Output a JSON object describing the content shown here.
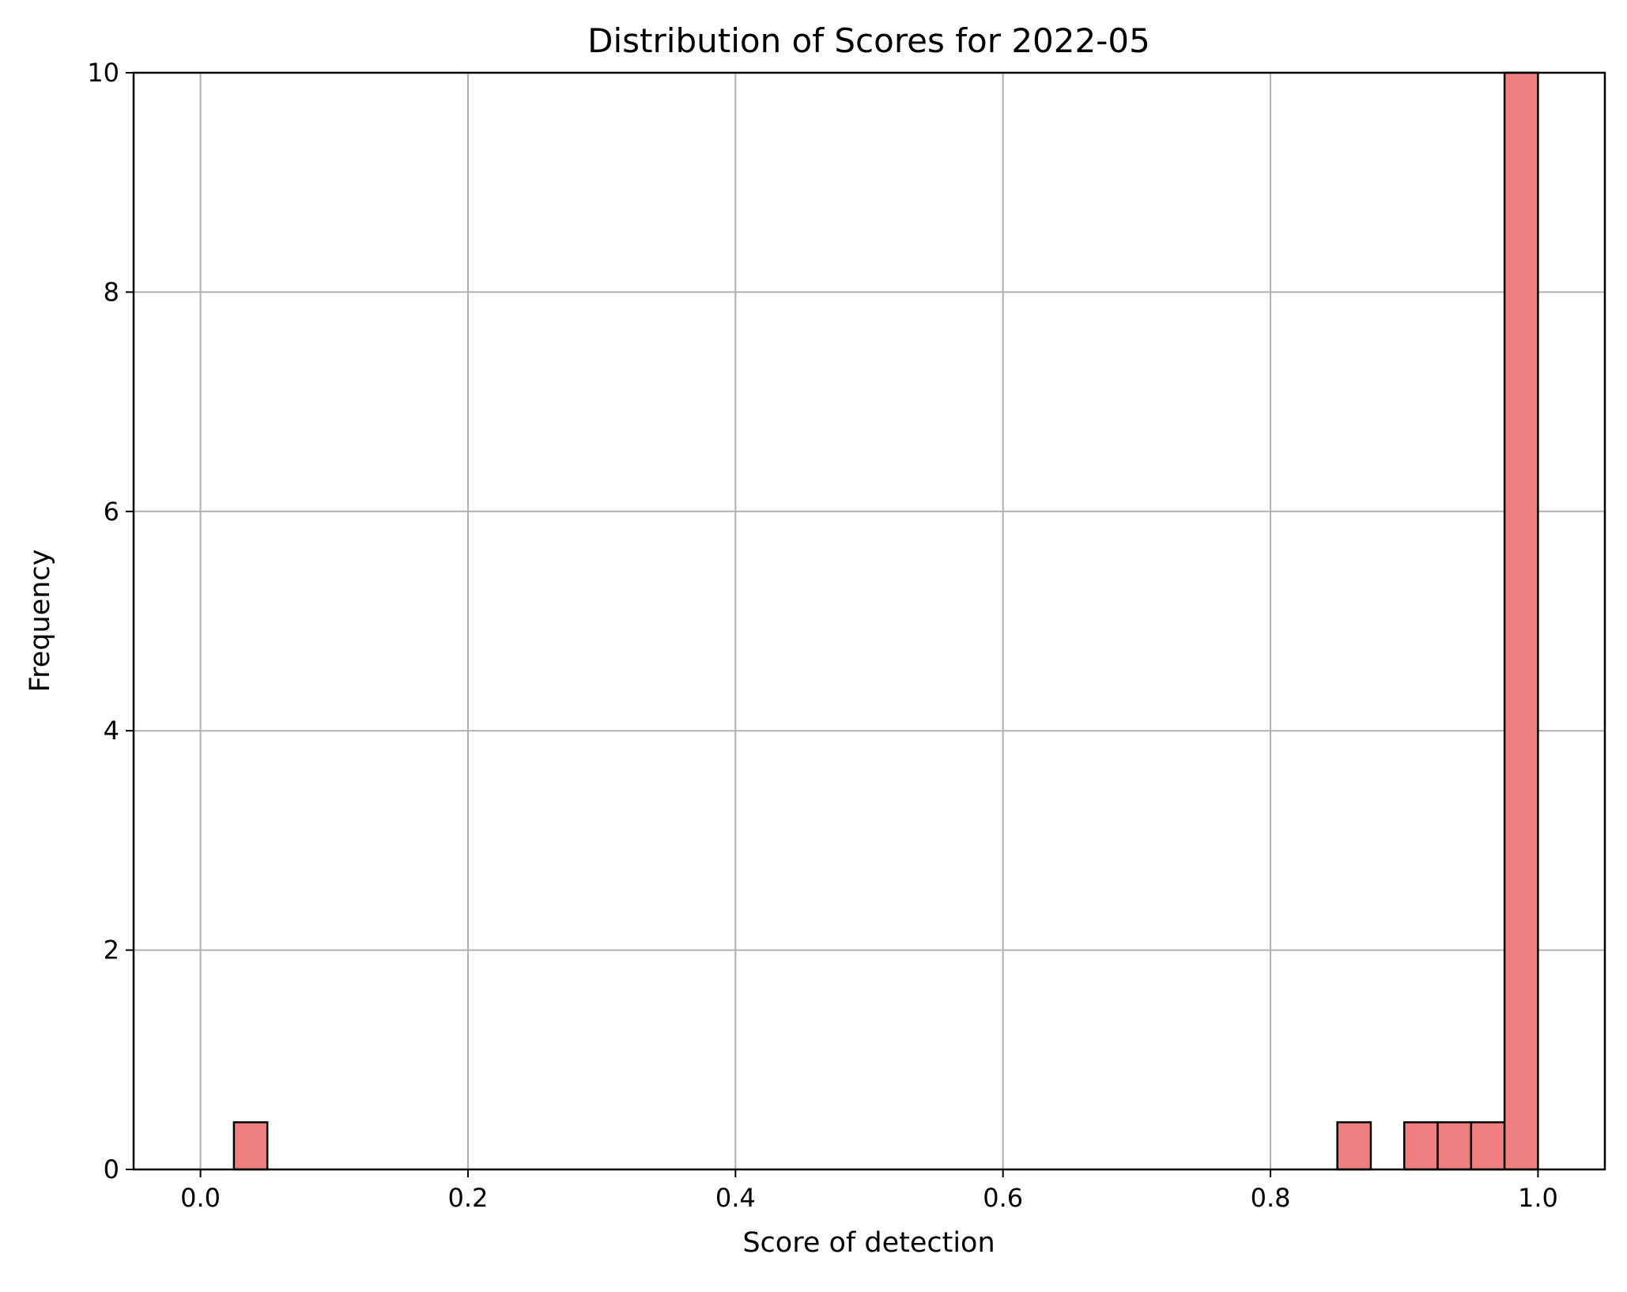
{
  "chart_data": {
    "type": "bar",
    "title": "Distribution of Scores for 2022-05",
    "xlabel": "Score of detection",
    "ylabel": "Frequency",
    "xlim": [
      -0.05,
      1.05
    ],
    "ylim": [
      0,
      10
    ],
    "xticks": [
      "0.0",
      "0.2",
      "0.4",
      "0.6",
      "0.8",
      "1.0"
    ],
    "yticks": [
      "0",
      "2",
      "4",
      "6",
      "8",
      "10"
    ],
    "grid": true,
    "bar_color": "#f08080",
    "edge_color": "#000000",
    "bin_width": 0.025,
    "bins": [
      {
        "start": 0.025,
        "value": 0.43
      },
      {
        "start": 0.85,
        "value": 0.43
      },
      {
        "start": 0.9,
        "value": 0.43
      },
      {
        "start": 0.925,
        "value": 0.43
      },
      {
        "start": 0.95,
        "value": 0.43
      },
      {
        "start": 0.975,
        "value": 10
      }
    ]
  }
}
